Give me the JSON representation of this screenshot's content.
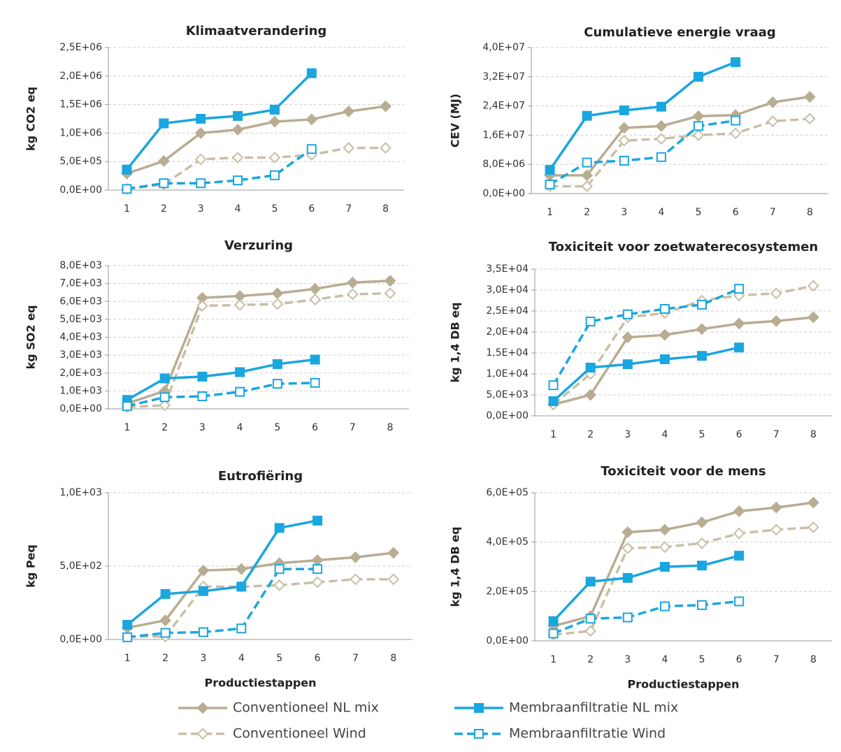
{
  "chart_data": [
    {
      "type": "line",
      "title": "Klimaatverandering",
      "ylabel": "kg CO2 eq",
      "categories": [
        "1",
        "2",
        "3",
        "4",
        "5",
        "6",
        "7",
        "8"
      ],
      "ylim": [
        0,
        2500000
      ],
      "yticks": [
        {
          "value": 0,
          "label": "0,0E+00"
        },
        {
          "value": 500000,
          "label": "5,0E+05"
        },
        {
          "value": 1000000,
          "label": "1,0E+06"
        },
        {
          "value": 1500000,
          "label": "1,5E+06"
        },
        {
          "value": 2000000,
          "label": "2,0E+06"
        },
        {
          "value": 2500000,
          "label": "2,5E+06"
        }
      ],
      "grid": true,
      "series": [
        {
          "name": "Conventioneel NL mix",
          "color": "#b8ad92",
          "dashed": false,
          "marker": "diamond",
          "filled": true,
          "values": [
            290000,
            510000,
            1000000,
            1060000,
            1200000,
            1240000,
            1380000,
            1470000
          ]
        },
        {
          "name": "Conventioneel Wind",
          "color": "#c9bfa6",
          "dashed": true,
          "marker": "diamond",
          "filled": false,
          "values": [
            20000,
            100000,
            540000,
            570000,
            570000,
            620000,
            740000,
            740000
          ]
        },
        {
          "name": "Membraanfiltratie NL mix",
          "color": "#1aa6df",
          "dashed": false,
          "marker": "square",
          "filled": true,
          "values": [
            360000,
            1170000,
            1250000,
            1300000,
            1410000,
            2050000,
            null,
            null
          ]
        },
        {
          "name": "Membraanfiltratie Wind",
          "color": "#1aa6df",
          "dashed": true,
          "marker": "square",
          "filled": false,
          "values": [
            20000,
            120000,
            120000,
            170000,
            260000,
            720000,
            null,
            null
          ]
        }
      ]
    },
    {
      "type": "line",
      "title": "Cumulatieve energie vraag",
      "ylabel": "CEV (MJ)",
      "categories": [
        "1",
        "2",
        "3",
        "4",
        "5",
        "6",
        "7",
        "8"
      ],
      "ylim": [
        0,
        40000000
      ],
      "yticks": [
        {
          "value": 0,
          "label": "0,0E+00"
        },
        {
          "value": 8000000,
          "label": "8,0E+06"
        },
        {
          "value": 16000000,
          "label": "1,6E+07"
        },
        {
          "value": 24000000,
          "label": "2,4E+07"
        },
        {
          "value": 32000000,
          "label": "3,2E+07"
        },
        {
          "value": 40000000,
          "label": "4,0E+07"
        }
      ],
      "grid": true,
      "series": [
        {
          "color": "#b8ad92",
          "values": [
            5000000,
            5000000,
            18000000,
            18500000,
            21200000,
            21500000,
            25000000,
            26500000
          ]
        },
        {
          "color": "#c9bfa6",
          "values": [
            2000000,
            2000000,
            14500000,
            15000000,
            16000000,
            16500000,
            19800000,
            20500000
          ]
        },
        {
          "color": "#1aa6df",
          "values": [
            6500000,
            21300000,
            22800000,
            23800000,
            32000000,
            36000000,
            null,
            null
          ]
        },
        {
          "color": "#1aa6df",
          "values": [
            2500000,
            8500000,
            9000000,
            10000000,
            18500000,
            20000000,
            null,
            null
          ]
        }
      ]
    },
    {
      "type": "line",
      "title": "Verzuring",
      "ylabel": "kg SO2 eq",
      "categories": [
        "1",
        "2",
        "3",
        "4",
        "5",
        "6",
        "7",
        "8"
      ],
      "ylim": [
        0,
        8000
      ],
      "yticks": [
        {
          "value": 0,
          "label": "0,0E+00"
        },
        {
          "value": 1000,
          "label": "1,0E+03"
        },
        {
          "value": 2000,
          "label": "2,0E+03"
        },
        {
          "value": 3000,
          "label": "3,0E+03"
        },
        {
          "value": 4000,
          "label": "4,0E+03"
        },
        {
          "value": 5000,
          "label": "5,0E+03"
        },
        {
          "value": 6000,
          "label": "6,0E+03"
        },
        {
          "value": 7000,
          "label": "7,0E+03"
        },
        {
          "value": 8000,
          "label": "8,0E+03"
        }
      ],
      "grid": true,
      "series": [
        {
          "color": "#b8ad92",
          "values": [
            300,
            1000,
            6200,
            6300,
            6450,
            6700,
            7050,
            7150
          ]
        },
        {
          "color": "#c9bfa6",
          "values": [
            100,
            200,
            5750,
            5800,
            5850,
            6100,
            6400,
            6450
          ]
        },
        {
          "color": "#1aa6df",
          "values": [
            500,
            1700,
            1800,
            2050,
            2500,
            2750,
            null,
            null
          ]
        },
        {
          "color": "#1aa6df",
          "values": [
            150,
            650,
            700,
            950,
            1400,
            1450,
            null,
            null
          ]
        }
      ]
    },
    {
      "type": "line",
      "title": "Toxiciteit voor zoetwaterecosystemen",
      "ylabel": "kg 1,4 DB eq",
      "categories": [
        "1",
        "2",
        "3",
        "4",
        "5",
        "6",
        "7",
        "8"
      ],
      "ylim": [
        0,
        35000
      ],
      "yticks": [
        {
          "value": 0,
          "label": "0,0E+00"
        },
        {
          "value": 5000,
          "label": "5,0E+03"
        },
        {
          "value": 10000,
          "label": "1,0E+04"
        },
        {
          "value": 15000,
          "label": "1,5E+04"
        },
        {
          "value": 20000,
          "label": "2,0E+04"
        },
        {
          "value": 25000,
          "label": "2,5E+04"
        },
        {
          "value": 30000,
          "label": "3,0E+04"
        },
        {
          "value": 35000,
          "label": "3,5E+04"
        }
      ],
      "grid": true,
      "series": [
        {
          "color": "#b8ad92",
          "values": [
            2700,
            5000,
            18700,
            19300,
            20700,
            22000,
            22600,
            23500
          ]
        },
        {
          "color": "#c9bfa6",
          "values": [
            2700,
            10000,
            23500,
            24500,
            27500,
            28700,
            29200,
            31000
          ]
        },
        {
          "color": "#1aa6df",
          "values": [
            3500,
            11500,
            12300,
            13500,
            14300,
            16300,
            null,
            null
          ]
        },
        {
          "color": "#1aa6df",
          "values": [
            7300,
            22500,
            24200,
            25500,
            26500,
            30300,
            null,
            null
          ]
        }
      ]
    },
    {
      "type": "line",
      "title": "Eutrofiëring",
      "ylabel": "kg Peq",
      "xlabel": "Productiestappen",
      "categories": [
        "1",
        "2",
        "3",
        "4",
        "5",
        "6",
        "7",
        "8"
      ],
      "ylim": [
        0,
        1000
      ],
      "yticks": [
        {
          "value": 0,
          "label": "0,0E+00"
        },
        {
          "value": 500,
          "label": "5,0E+02"
        },
        {
          "value": 1000,
          "label": "1,0E+03"
        }
      ],
      "grid": true,
      "series": [
        {
          "color": "#b8ad92",
          "values": [
            80,
            130,
            470,
            480,
            520,
            540,
            560,
            590
          ]
        },
        {
          "color": "#c9bfa6",
          "values": [
            20,
            20,
            360,
            360,
            370,
            390,
            410,
            410
          ]
        },
        {
          "color": "#1aa6df",
          "values": [
            100,
            310,
            330,
            360,
            760,
            810,
            null,
            null
          ]
        },
        {
          "color": "#1aa6df",
          "values": [
            15,
            45,
            50,
            75,
            480,
            480,
            null,
            null
          ]
        }
      ]
    },
    {
      "type": "line",
      "title": "Toxiciteit voor de mens",
      "ylabel": "kg 1,4 DB eq",
      "xlabel": "Productiestappen",
      "categories": [
        "1",
        "2",
        "3",
        "4",
        "5",
        "6",
        "7",
        "8"
      ],
      "ylim": [
        0,
        600000
      ],
      "yticks": [
        {
          "value": 0,
          "label": "0,0E+00"
        },
        {
          "value": 200000,
          "label": "2,0E+05"
        },
        {
          "value": 400000,
          "label": "4,0E+05"
        },
        {
          "value": 600000,
          "label": "6,0E+05"
        }
      ],
      "grid": true,
      "series": [
        {
          "color": "#b8ad92",
          "values": [
            60000,
            100000,
            440000,
            450000,
            480000,
            525000,
            540000,
            560000
          ]
        },
        {
          "color": "#c9bfa6",
          "values": [
            25000,
            40000,
            375000,
            380000,
            395000,
            435000,
            450000,
            460000
          ]
        },
        {
          "color": "#1aa6df",
          "values": [
            80000,
            240000,
            255000,
            300000,
            305000,
            345000,
            null,
            null
          ]
        },
        {
          "color": "#1aa6df",
          "values": [
            30000,
            90000,
            95000,
            140000,
            145000,
            160000,
            null,
            null
          ]
        }
      ]
    }
  ]
}
